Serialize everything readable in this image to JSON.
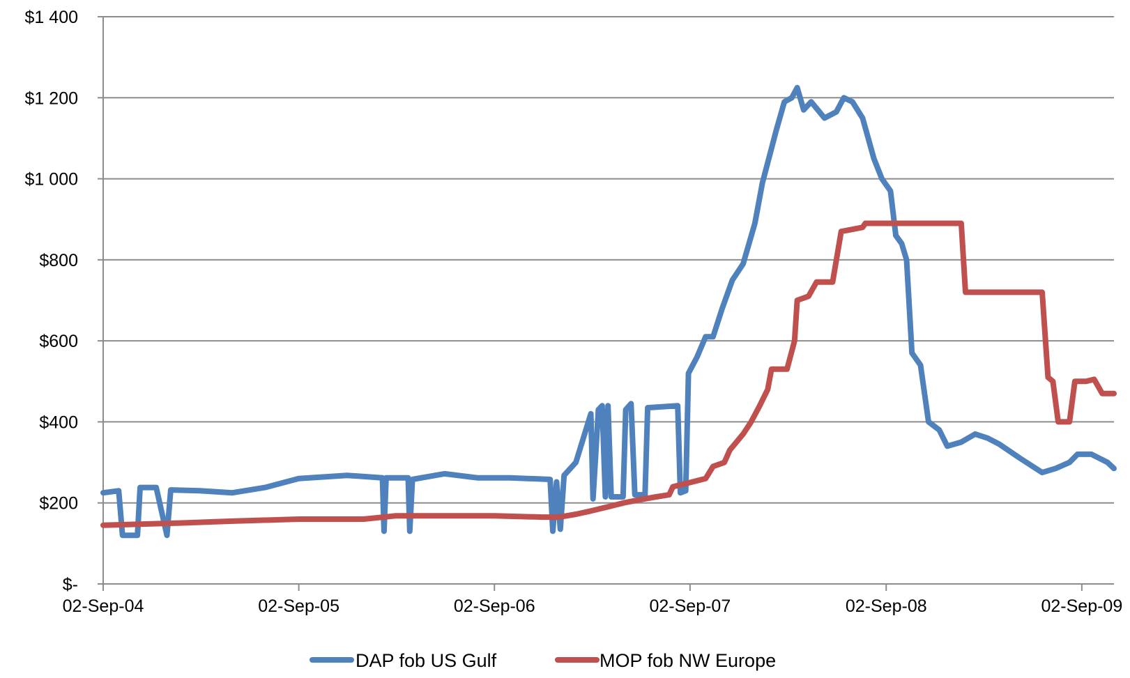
{
  "chart_data": {
    "type": "line",
    "title": "",
    "xlabel": "",
    "ylabel": "",
    "ylim": [
      0,
      1400
    ],
    "yticks": [
      {
        "value": 0,
        "label": "$-"
      },
      {
        "value": 200,
        "label": "$200"
      },
      {
        "value": 400,
        "label": "$400"
      },
      {
        "value": 600,
        "label": "$600"
      },
      {
        "value": 800,
        "label": "$800"
      },
      {
        "value": 1000,
        "label": "$1 000"
      },
      {
        "value": 1200,
        "label": "$1 200"
      },
      {
        "value": 1400,
        "label": "$1 400"
      }
    ],
    "xlim": [
      "2004-09-02",
      "2009-11-01"
    ],
    "xticks": [
      {
        "value": "2004-09-02",
        "label": "02-Sep-04"
      },
      {
        "value": "2005-09-02",
        "label": "02-Sep-05"
      },
      {
        "value": "2006-09-02",
        "label": "02-Sep-06"
      },
      {
        "value": "2007-09-02",
        "label": "02-Sep-07"
      },
      {
        "value": "2008-09-02",
        "label": "02-Sep-08"
      },
      {
        "value": "2009-09-02",
        "label": "02-Sep-09"
      }
    ],
    "grid": "horizontal",
    "legend_position": "bottom",
    "series": [
      {
        "name": "DAP fob US Gulf",
        "color": "#4F81BD",
        "points": [
          [
            "2004-09-02",
            225
          ],
          [
            "2004-10-01",
            230
          ],
          [
            "2004-10-08",
            120
          ],
          [
            "2004-11-05",
            120
          ],
          [
            "2004-11-10",
            238
          ],
          [
            "2004-12-10",
            238
          ],
          [
            "2004-12-30",
            120
          ],
          [
            "2005-01-06",
            232
          ],
          [
            "2005-03-01",
            230
          ],
          [
            "2005-05-01",
            225
          ],
          [
            "2005-07-01",
            238
          ],
          [
            "2005-09-02",
            260
          ],
          [
            "2005-12-01",
            268
          ],
          [
            "2006-02-05",
            262
          ],
          [
            "2006-02-08",
            130
          ],
          [
            "2006-02-12",
            262
          ],
          [
            "2006-03-25",
            262
          ],
          [
            "2006-03-28",
            130
          ],
          [
            "2006-04-02",
            258
          ],
          [
            "2006-06-01",
            272
          ],
          [
            "2006-08-01",
            262
          ],
          [
            "2006-10-01",
            262
          ],
          [
            "2006-12-15",
            258
          ],
          [
            "2006-12-20",
            130
          ],
          [
            "2006-12-27",
            252
          ],
          [
            "2007-01-03",
            135
          ],
          [
            "2007-01-10",
            268
          ],
          [
            "2007-02-01",
            300
          ],
          [
            "2007-03-01",
            420
          ],
          [
            "2007-03-05",
            210
          ],
          [
            "2007-03-15",
            430
          ],
          [
            "2007-03-22",
            440
          ],
          [
            "2007-03-28",
            215
          ],
          [
            "2007-04-02",
            440
          ],
          [
            "2007-04-08",
            215
          ],
          [
            "2007-04-30",
            215
          ],
          [
            "2007-05-05",
            430
          ],
          [
            "2007-05-15",
            445
          ],
          [
            "2007-05-22",
            220
          ],
          [
            "2007-06-10",
            220
          ],
          [
            "2007-06-15",
            435
          ],
          [
            "2007-08-10",
            440
          ],
          [
            "2007-08-15",
            225
          ],
          [
            "2007-08-25",
            230
          ],
          [
            "2007-08-30",
            520
          ],
          [
            "2007-09-15",
            560
          ],
          [
            "2007-10-01",
            610
          ],
          [
            "2007-10-15",
            610
          ],
          [
            "2007-11-01",
            680
          ],
          [
            "2007-11-20",
            750
          ],
          [
            "2007-12-10",
            790
          ],
          [
            "2008-01-01",
            890
          ],
          [
            "2008-01-15",
            990
          ],
          [
            "2008-02-10",
            1120
          ],
          [
            "2008-02-25",
            1190
          ],
          [
            "2008-03-10",
            1200
          ],
          [
            "2008-03-20",
            1225
          ],
          [
            "2008-04-01",
            1170
          ],
          [
            "2008-04-15",
            1190
          ],
          [
            "2008-05-10",
            1150
          ],
          [
            "2008-06-01",
            1165
          ],
          [
            "2008-06-15",
            1200
          ],
          [
            "2008-07-01",
            1190
          ],
          [
            "2008-07-20",
            1150
          ],
          [
            "2008-08-10",
            1050
          ],
          [
            "2008-08-25",
            1000
          ],
          [
            "2008-09-10",
            970
          ],
          [
            "2008-09-20",
            860
          ],
          [
            "2008-10-01",
            840
          ],
          [
            "2008-10-10",
            800
          ],
          [
            "2008-10-20",
            570
          ],
          [
            "2008-11-05",
            540
          ],
          [
            "2008-11-20",
            400
          ],
          [
            "2008-12-10",
            380
          ],
          [
            "2008-12-25",
            340
          ],
          [
            "2009-01-20",
            350
          ],
          [
            "2009-02-15",
            370
          ],
          [
            "2009-03-10",
            360
          ],
          [
            "2009-04-01",
            345
          ],
          [
            "2009-05-10",
            310
          ],
          [
            "2009-06-20",
            275
          ],
          [
            "2009-07-15",
            285
          ],
          [
            "2009-08-10",
            300
          ],
          [
            "2009-08-25",
            320
          ],
          [
            "2009-09-20",
            320
          ],
          [
            "2009-10-20",
            300
          ],
          [
            "2009-11-01",
            285
          ]
        ]
      },
      {
        "name": "MOP fob NW Europe",
        "color": "#C0504D",
        "points": [
          [
            "2004-09-02",
            145
          ],
          [
            "2005-01-15",
            150
          ],
          [
            "2005-05-01",
            155
          ],
          [
            "2005-09-02",
            160
          ],
          [
            "2006-01-01",
            160
          ],
          [
            "2006-03-01",
            168
          ],
          [
            "2006-06-01",
            168
          ],
          [
            "2006-09-02",
            168
          ],
          [
            "2006-12-01",
            165
          ],
          [
            "2007-01-01",
            165
          ],
          [
            "2007-02-01",
            172
          ],
          [
            "2007-03-01",
            180
          ],
          [
            "2007-04-01",
            190
          ],
          [
            "2007-05-01",
            200
          ],
          [
            "2007-06-01",
            208
          ],
          [
            "2007-07-01",
            215
          ],
          [
            "2007-07-25",
            220
          ],
          [
            "2007-08-01",
            240
          ],
          [
            "2007-09-01",
            250
          ],
          [
            "2007-10-01",
            260
          ],
          [
            "2007-10-15",
            290
          ],
          [
            "2007-11-05",
            300
          ],
          [
            "2007-11-15",
            330
          ],
          [
            "2007-12-10",
            370
          ],
          [
            "2007-12-25",
            400
          ],
          [
            "2008-01-10",
            440
          ],
          [
            "2008-01-25",
            480
          ],
          [
            "2008-02-01",
            530
          ],
          [
            "2008-03-01",
            530
          ],
          [
            "2008-03-15",
            600
          ],
          [
            "2008-03-20",
            700
          ],
          [
            "2008-04-10",
            710
          ],
          [
            "2008-04-25",
            745
          ],
          [
            "2008-05-25",
            745
          ],
          [
            "2008-06-10",
            870
          ],
          [
            "2008-07-20",
            880
          ],
          [
            "2008-07-25",
            890
          ],
          [
            "2008-09-10",
            890
          ],
          [
            "2008-12-01",
            890
          ],
          [
            "2009-01-20",
            890
          ],
          [
            "2009-01-28",
            720
          ],
          [
            "2009-06-10",
            720
          ],
          [
            "2009-06-20",
            720
          ],
          [
            "2009-07-01",
            510
          ],
          [
            "2009-07-10",
            500
          ],
          [
            "2009-07-20",
            400
          ],
          [
            "2009-08-10",
            400
          ],
          [
            "2009-08-20",
            500
          ],
          [
            "2009-09-10",
            500
          ],
          [
            "2009-09-25",
            505
          ],
          [
            "2009-10-10",
            470
          ],
          [
            "2009-11-01",
            470
          ]
        ]
      }
    ]
  }
}
